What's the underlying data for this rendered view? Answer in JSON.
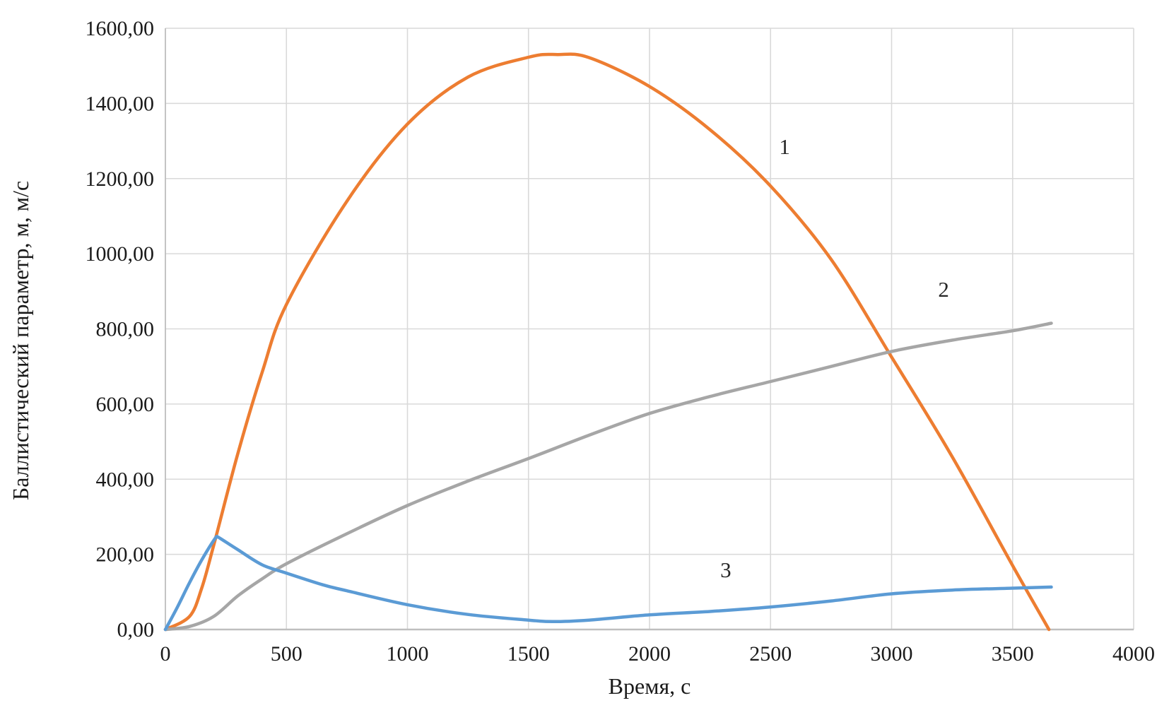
{
  "figure": {
    "background": "#ffffff",
    "grid_color": "#d9d9d9",
    "axis_line_color": "#bfbfbf",
    "text_color": "#1a1a1a"
  },
  "chart_data": {
    "type": "line",
    "title": "",
    "xlabel": "Время, с",
    "ylabel": "Баллистический параметр, м, м/с",
    "xlim": [
      0,
      4000
    ],
    "ylim": [
      0,
      1600
    ],
    "grid": true,
    "legend_position": "none",
    "x_ticks": [
      0,
      500,
      1000,
      1500,
      2000,
      2500,
      3000,
      3500,
      4000
    ],
    "x_tick_labels": [
      "0",
      "500",
      "1000",
      "1500",
      "2000",
      "2500",
      "3000",
      "3500",
      "4000"
    ],
    "y_ticks": [
      0,
      200,
      400,
      600,
      800,
      1000,
      1200,
      1400,
      1600
    ],
    "y_tick_labels": [
      "0,00",
      "200,00",
      "400,00",
      "600,00",
      "800,00",
      "1000,00",
      "1200,00",
      "1400,00",
      "1600,00"
    ],
    "series": [
      {
        "name": "1",
        "color": "#ed7d31",
        "x": [
          0,
          100,
          150,
          200,
          300,
          400,
          500,
          750,
          1000,
          1250,
          1500,
          1620,
          1750,
          2000,
          2250,
          2500,
          2750,
          3000,
          3250,
          3500,
          3650
        ],
        "y": [
          0,
          35,
          110,
          225,
          470,
          685,
          865,
          1140,
          1345,
          1470,
          1523,
          1530,
          1522,
          1445,
          1330,
          1180,
          985,
          725,
          460,
          170,
          0
        ],
        "label": "1",
        "label_at": {
          "x": 2558,
          "y": 1265
        }
      },
      {
        "name": "2",
        "color": "#a6a6a6",
        "x": [
          0,
          100,
          200,
          300,
          400,
          500,
          750,
          1000,
          1250,
          1500,
          1750,
          2000,
          2250,
          2500,
          2750,
          3000,
          3250,
          3500,
          3660
        ],
        "y": [
          0,
          8,
          35,
          90,
          135,
          175,
          255,
          330,
          395,
          455,
          517,
          575,
          620,
          660,
          700,
          740,
          770,
          795,
          815
        ],
        "label": "2",
        "label_at": {
          "x": 3215,
          "y": 886
        }
      },
      {
        "name": "3",
        "color": "#5b9bd5",
        "x": [
          0,
          50,
          100,
          150,
          205,
          216,
          230,
          300,
          400,
          500,
          650,
          750,
          1000,
          1250,
          1500,
          1600,
          1750,
          2000,
          2250,
          2500,
          2750,
          3000,
          3250,
          3500,
          3660
        ],
        "y": [
          0,
          60,
          125,
          185,
          242,
          246,
          241,
          212,
          172,
          150,
          119,
          103,
          66,
          40,
          25,
          21,
          25,
          39,
          48,
          60,
          76,
          95,
          105,
          110,
          113
        ],
        "label": "3",
        "label_at": {
          "x": 2315,
          "y": 139
        }
      }
    ]
  }
}
